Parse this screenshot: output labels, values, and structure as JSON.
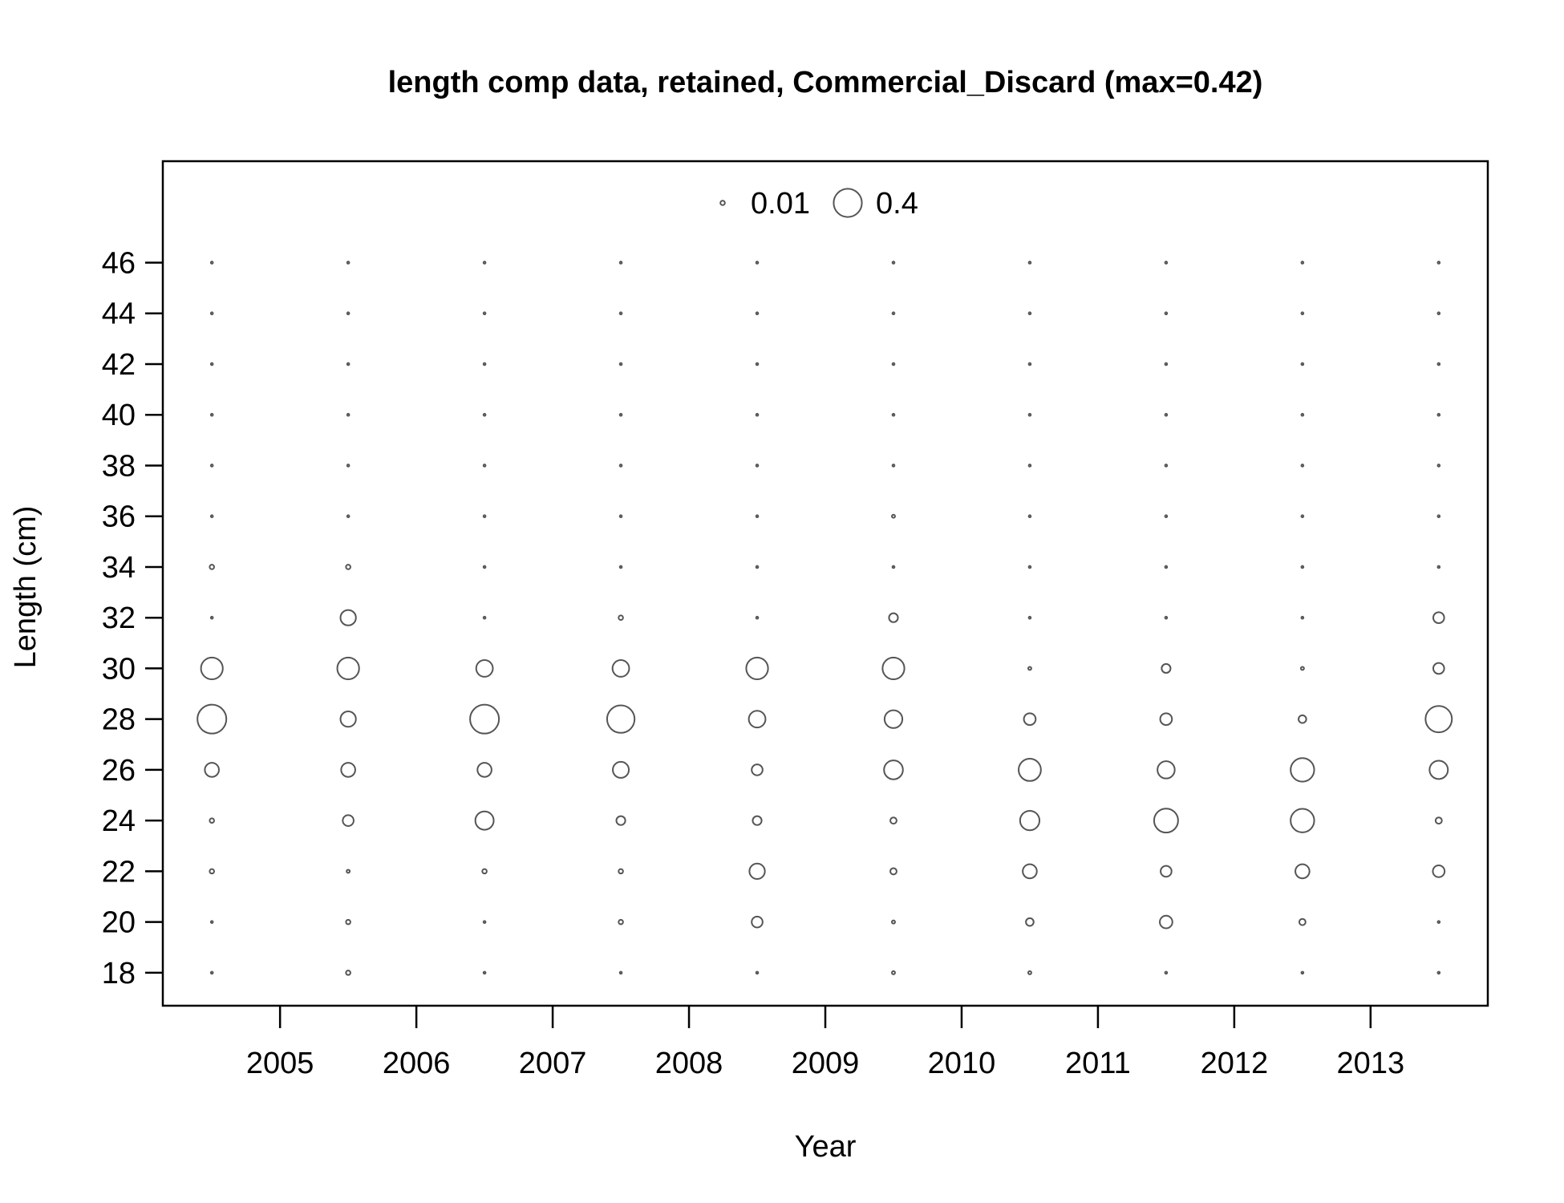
{
  "chart_data": {
    "type": "scatter",
    "title": "length comp data, retained, Commercial_Discard (max=0.42)",
    "xlabel": "Year",
    "ylabel": "Length (cm)",
    "x_ticks": [
      2005,
      2006,
      2007,
      2008,
      2009,
      2010,
      2011,
      2012,
      2013
    ],
    "y_ticks": [
      18,
      20,
      22,
      24,
      26,
      28,
      30,
      32,
      34,
      36,
      38,
      40,
      42,
      44,
      46
    ],
    "xlim": [
      2004.14,
      2013.86
    ],
    "ylim": [
      16.7,
      50.0
    ],
    "legend": {
      "placement": "top-center",
      "entries": [
        {
          "label": "0.01",
          "value": 0.01
        },
        {
          "label": "0.4",
          "value": 0.4
        }
      ]
    },
    "max_value": 0.42,
    "lengths": [
      18,
      20,
      22,
      24,
      26,
      28,
      30,
      32,
      34,
      36,
      38,
      40,
      42,
      44,
      46
    ],
    "series": [
      {
        "x": 2004.5,
        "values": [
          0,
          0,
          0.01,
          0.01,
          0.1,
          0.42,
          0.24,
          0,
          0.01,
          0,
          0,
          0,
          0,
          0,
          0
        ]
      },
      {
        "x": 2005.5,
        "values": [
          0.01,
          0.01,
          0.005,
          0.06,
          0.1,
          0.12,
          0.24,
          0.12,
          0.01,
          0,
          0,
          0,
          0,
          0,
          0
        ]
      },
      {
        "x": 2006.5,
        "values": [
          0,
          0,
          0.01,
          0.17,
          0.1,
          0.42,
          0.14,
          0,
          0,
          0,
          0,
          0,
          0,
          0,
          0
        ]
      },
      {
        "x": 2007.5,
        "values": [
          0,
          0.01,
          0.01,
          0.04,
          0.13,
          0.38,
          0.14,
          0.01,
          0,
          0,
          0,
          0,
          0,
          0,
          0
        ]
      },
      {
        "x": 2008.5,
        "values": [
          0,
          0.06,
          0.12,
          0.04,
          0.06,
          0.14,
          0.24,
          0,
          0,
          0,
          0,
          0,
          0,
          0,
          0
        ]
      },
      {
        "x": 2009.5,
        "values": [
          0.005,
          0.005,
          0.02,
          0.02,
          0.18,
          0.16,
          0.24,
          0.04,
          0,
          0.005,
          0,
          0,
          0,
          0,
          0
        ]
      },
      {
        "x": 2010.5,
        "values": [
          0.005,
          0.03,
          0.1,
          0.19,
          0.25,
          0.07,
          0.005,
          0,
          0,
          0,
          0,
          0,
          0,
          0,
          0
        ]
      },
      {
        "x": 2011.5,
        "values": [
          0,
          0.08,
          0.06,
          0.29,
          0.15,
          0.07,
          0.04,
          0,
          0,
          0,
          0,
          0,
          0,
          0,
          0
        ]
      },
      {
        "x": 2012.5,
        "values": [
          0,
          0.02,
          0.1,
          0.28,
          0.28,
          0.03,
          0.005,
          0,
          0,
          0,
          0,
          0,
          0,
          0,
          0
        ]
      },
      {
        "x": 2013.5,
        "values": [
          0,
          0,
          0.07,
          0.02,
          0.17,
          0.35,
          0.06,
          0.06,
          0,
          0,
          0,
          0,
          0,
          0,
          0
        ]
      }
    ],
    "colors": {
      "bubble": "#555555",
      "frame": "#000000"
    },
    "grid": false
  }
}
